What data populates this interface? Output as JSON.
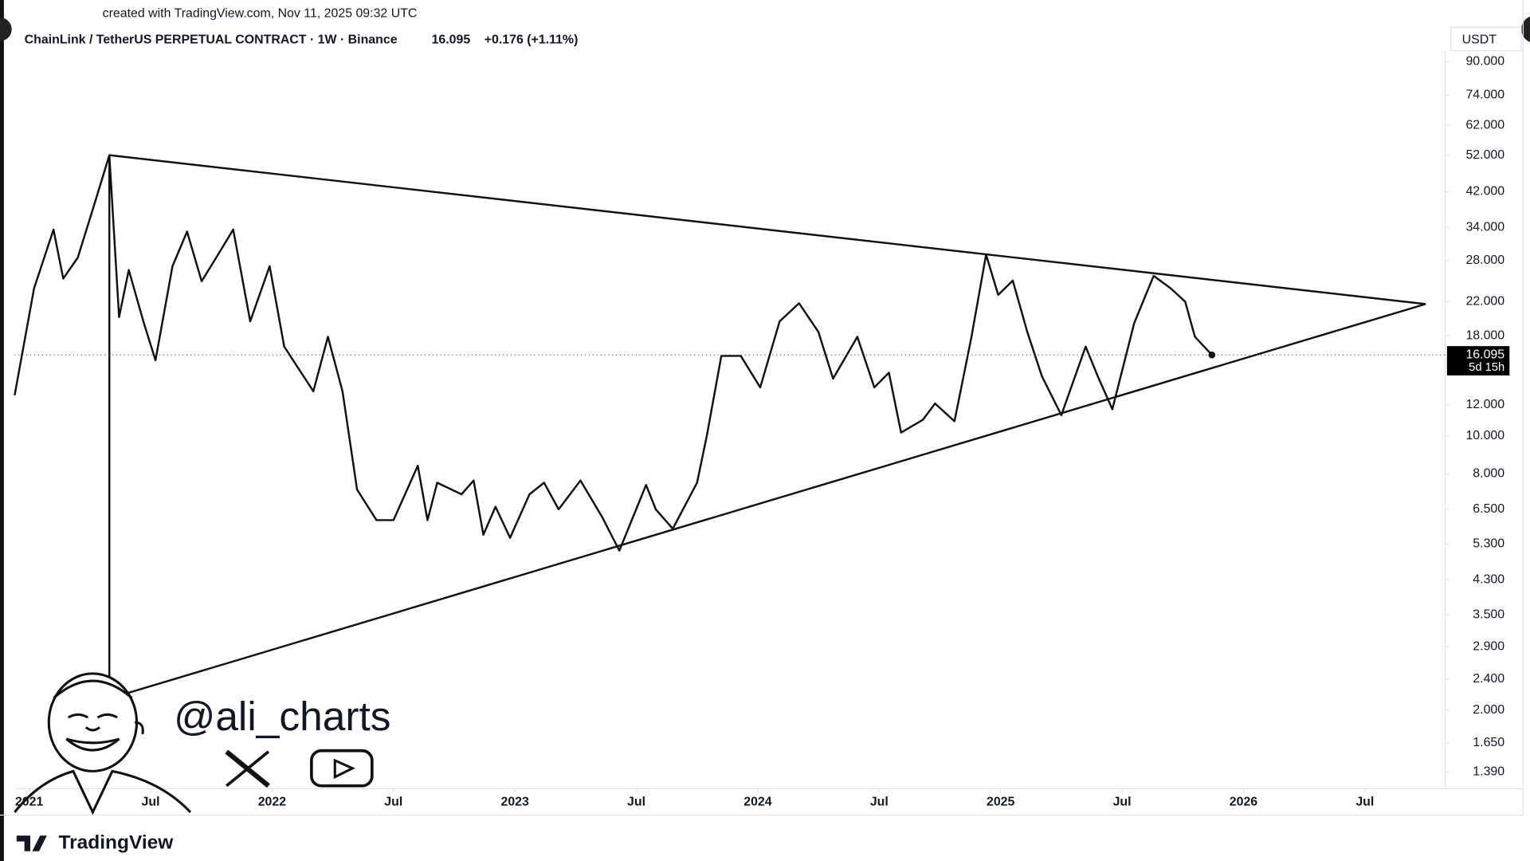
{
  "header": {
    "created": "created with TradingView.com, Nov 11, 2025 09:32 UTC",
    "brand": "TradingView"
  },
  "watermark": {
    "handle": "@ali_charts"
  },
  "chart_data": {
    "type": "line",
    "title": "ChainLink / TetherUS PERPETUAL CONTRACT · 1W · Binance",
    "change": "+0.176 (+1.11%)",
    "currency": "USDT",
    "countdown": "5d 15h",
    "color": "#111111",
    "log_scale": true,
    "grid": false,
    "x": [
      2020.94,
      2021.02,
      2021.1,
      2021.14,
      2021.2,
      2021.27,
      2021.33,
      2021.37,
      2021.41,
      2021.47,
      2021.52,
      2021.59,
      2021.65,
      2021.71,
      2021.77,
      2021.84,
      2021.91,
      2021.99,
      2022.05,
      2022.17,
      2022.23,
      2022.29,
      2022.35,
      2022.43,
      2022.5,
      2022.6,
      2022.64,
      2022.68,
      2022.78,
      2022.83,
      2022.87,
      2022.92,
      2022.98,
      2023.06,
      2023.12,
      2023.18,
      2023.27,
      2023.36,
      2023.43,
      2023.54,
      2023.58,
      2023.65,
      2023.75,
      2023.79,
      2023.85,
      2023.93,
      2024.01,
      2024.09,
      2024.17,
      2024.25,
      2024.31,
      2024.41,
      2024.48,
      2024.54,
      2024.59,
      2024.68,
      2024.73,
      2024.81,
      2024.88,
      2024.94,
      2024.99,
      2025.05,
      2025.11,
      2025.17,
      2025.25,
      2025.35,
      2025.4,
      2025.46,
      2025.55,
      2025.63,
      2025.7,
      2025.76,
      2025.8,
      2025.87
    ],
    "values": [
      12.7,
      23.8,
      33.6,
      25.2,
      28.5,
      39.3,
      52.0,
      20.1,
      26.5,
      19.6,
      15.6,
      27.1,
      33.2,
      24.8,
      28.5,
      33.6,
      19.6,
      27.1,
      16.9,
      13.0,
      17.9,
      13.0,
      7.3,
      6.1,
      6.1,
      8.4,
      6.1,
      7.6,
      7.1,
      7.7,
      5.6,
      6.6,
      5.5,
      7.1,
      7.6,
      6.5,
      7.7,
      6.2,
      5.1,
      7.5,
      6.5,
      5.8,
      7.6,
      10.0,
      16.0,
      16.0,
      13.3,
      19.6,
      21.8,
      18.4,
      14.0,
      17.9,
      13.3,
      14.5,
      10.2,
      11.0,
      12.1,
      10.9,
      17.9,
      29.0,
      22.9,
      24.9,
      18.4,
      14.2,
      11.3,
      16.9,
      14.2,
      11.7,
      19.4,
      25.6,
      23.8,
      22.0,
      17.9,
      16.095
    ],
    "trendlines": [
      {
        "x": [
          2021.33,
          2026.75
        ],
        "y": [
          52.0,
          21.7
        ]
      },
      {
        "x": [
          2021.33,
          2026.75
        ],
        "y": [
          2.14,
          21.7
        ]
      },
      {
        "x": [
          2021.33,
          2021.33
        ],
        "y": [
          52.0,
          2.14
        ]
      }
    ],
    "xlim": [
      2020.94,
      2026.83
    ],
    "xticks": [
      {
        "value": 2021,
        "label": "2021"
      },
      {
        "value": 2021.5,
        "label": "Jul"
      },
      {
        "value": 2022,
        "label": "2022"
      },
      {
        "value": 2022.5,
        "label": "Jul"
      },
      {
        "value": 2023,
        "label": "2023"
      },
      {
        "value": 2023.5,
        "label": "Jul"
      },
      {
        "value": 2024,
        "label": "2024"
      },
      {
        "value": 2024.5,
        "label": "Jul"
      },
      {
        "value": 2025,
        "label": "2025"
      },
      {
        "value": 2025.5,
        "label": "Jul"
      },
      {
        "value": 2026,
        "label": "2026"
      },
      {
        "value": 2026.5,
        "label": "Jul"
      }
    ],
    "ylim": [
      1.26,
      96
    ],
    "yticks": [
      {
        "value": 1.39,
        "label": "1.390"
      },
      {
        "value": 1.65,
        "label": "1.650"
      },
      {
        "value": 2,
        "label": "2.000"
      },
      {
        "value": 2.4,
        "label": "2.400"
      },
      {
        "value": 2.9,
        "label": "2.900"
      },
      {
        "value": 3.5,
        "label": "3.500"
      },
      {
        "value": 4.3,
        "label": "4.300"
      },
      {
        "value": 5.3,
        "label": "5.300"
      },
      {
        "value": 6.5,
        "label": "6.500"
      },
      {
        "value": 8,
        "label": "8.000"
      },
      {
        "value": 10,
        "label": "10.000"
      },
      {
        "value": 12,
        "label": "12.000"
      },
      {
        "value": 18,
        "label": "18.000"
      },
      {
        "value": 22,
        "label": "22.000"
      },
      {
        "value": 28,
        "label": "28.000"
      },
      {
        "value": 34,
        "label": "34.000"
      },
      {
        "value": 42,
        "label": "42.000"
      },
      {
        "value": 52,
        "label": "52.000"
      },
      {
        "value": 62,
        "label": "62.000"
      },
      {
        "value": 74,
        "label": "74.000"
      },
      {
        "value": 90,
        "label": "90.000"
      }
    ]
  }
}
